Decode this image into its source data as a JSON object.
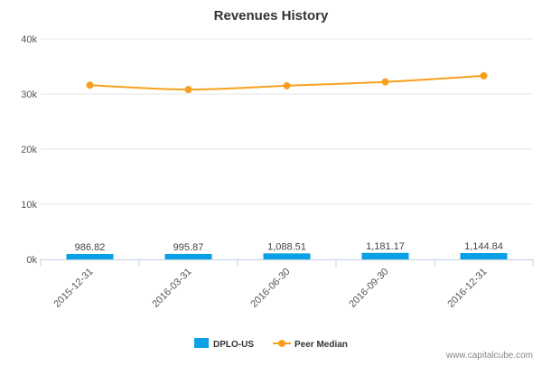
{
  "chart_data": {
    "type": "bar",
    "title": "Revenues History",
    "categories": [
      "2015-12-31",
      "2016-03-31",
      "2016-06-30",
      "2016-09-30",
      "2016-12-31"
    ],
    "series": [
      {
        "name": "DPLO-US",
        "type": "bar",
        "color": "#0aa0e6",
        "values": [
          986.82,
          995.87,
          1088.51,
          1181.17,
          1144.84
        ],
        "labels": [
          "986.82",
          "995.87",
          "1,088.51",
          "1,181.17",
          "1,144.84"
        ]
      },
      {
        "name": "Peer Median",
        "type": "line",
        "color": "#f8a01e",
        "values": [
          31600,
          30800,
          31500,
          32200,
          33300
        ]
      }
    ],
    "ylim": [
      0,
      40000
    ],
    "yticks": [
      0,
      10000,
      20000,
      30000,
      40000
    ],
    "ytick_labels": [
      "0k",
      "10k",
      "20k",
      "30k",
      "40k"
    ],
    "grid": true,
    "legend_position": "bottom-center"
  },
  "watermark": "www.capitalcube.com"
}
